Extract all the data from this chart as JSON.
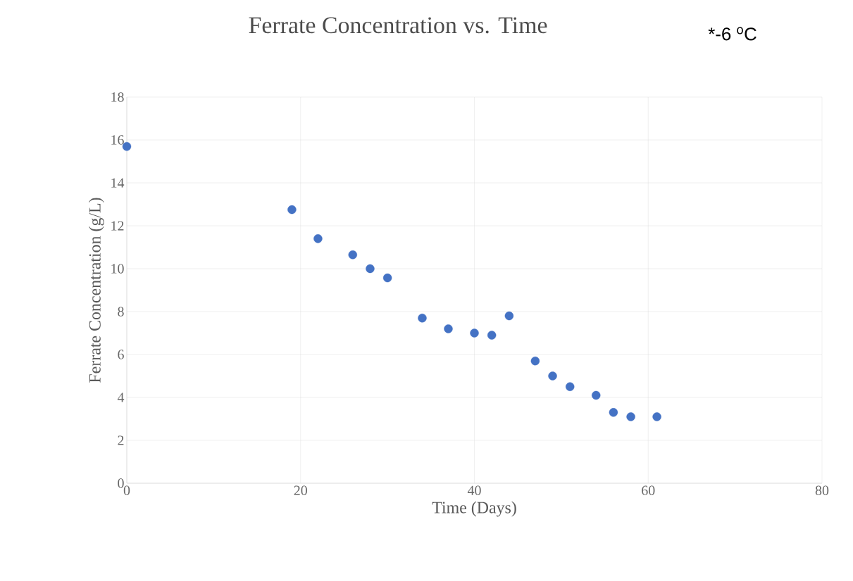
{
  "chart_data": {
    "type": "scatter",
    "title": "Ferrate Concentration vs. Time",
    "xlabel": "Time (Days)",
    "ylabel": "Ferrate  Concentration  (g/L)",
    "annotations": [
      "*-6 $^{o}$C"
    ],
    "x": [
      0,
      19,
      22,
      26,
      28,
      30,
      34,
      37,
      40,
      42,
      44,
      47,
      49,
      51,
      54,
      56,
      58,
      61
    ],
    "series": [
      {
        "color": "#4472c4",
        "values": [
          15.7,
          12.75,
          11.4,
          10.65,
          10.0,
          9.57,
          7.7,
          7.2,
          7.0,
          6.9,
          7.8,
          5.7,
          5.0,
          4.5,
          4.1,
          3.3,
          3.1,
          3.1
        ]
      }
    ],
    "xlim": [
      0,
      80
    ],
    "xticks": [
      0,
      20,
      40,
      60,
      80
    ],
    "ylim": [
      0,
      18
    ],
    "yticks": [
      0,
      2,
      4,
      6,
      8,
      10,
      12,
      14,
      16,
      18
    ],
    "grid": true,
    "marker": "circle"
  }
}
